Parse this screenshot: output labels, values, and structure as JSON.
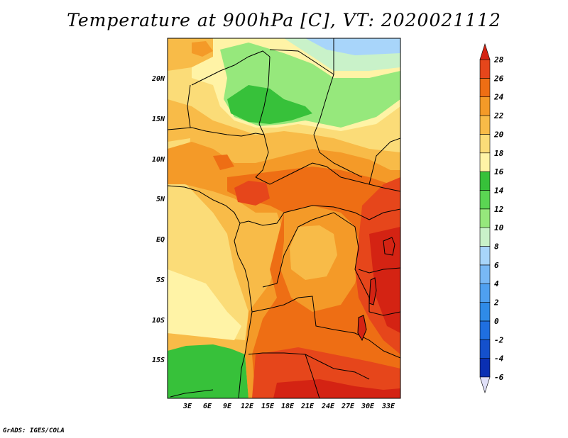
{
  "title": "Temperature at 900hPa [C], VT: 2020021112",
  "credit": "GrADS: IGES/COLA",
  "map": {
    "lat_labels": [
      "20N",
      "15N",
      "10N",
      "5N",
      "EQ",
      "5S",
      "10S",
      "15S"
    ],
    "lon_labels": [
      "3E",
      "6E",
      "9E",
      "12E",
      "15E",
      "18E",
      "21E",
      "24E",
      "27E",
      "30E",
      "33E"
    ]
  },
  "colorbar": {
    "levels": [
      "-6",
      "-4",
      "-2",
      "0",
      "2",
      "4",
      "6",
      "8",
      "10",
      "12",
      "14",
      "16",
      "18",
      "20",
      "22",
      "24",
      "26",
      "28"
    ],
    "colors": [
      "#0a0a78",
      "#0a2fb3",
      "#1450cc",
      "#1f6fe0",
      "#2f8be8",
      "#4fa0f0",
      "#78b8f5",
      "#a8d5fa",
      "#c9f2c9",
      "#96e87c",
      "#5bd553",
      "#37c13a",
      "#fff3a6",
      "#fbdc78",
      "#f8bb48",
      "#f49a28",
      "#ee6e14",
      "#e6461b",
      "#d42313"
    ]
  }
}
